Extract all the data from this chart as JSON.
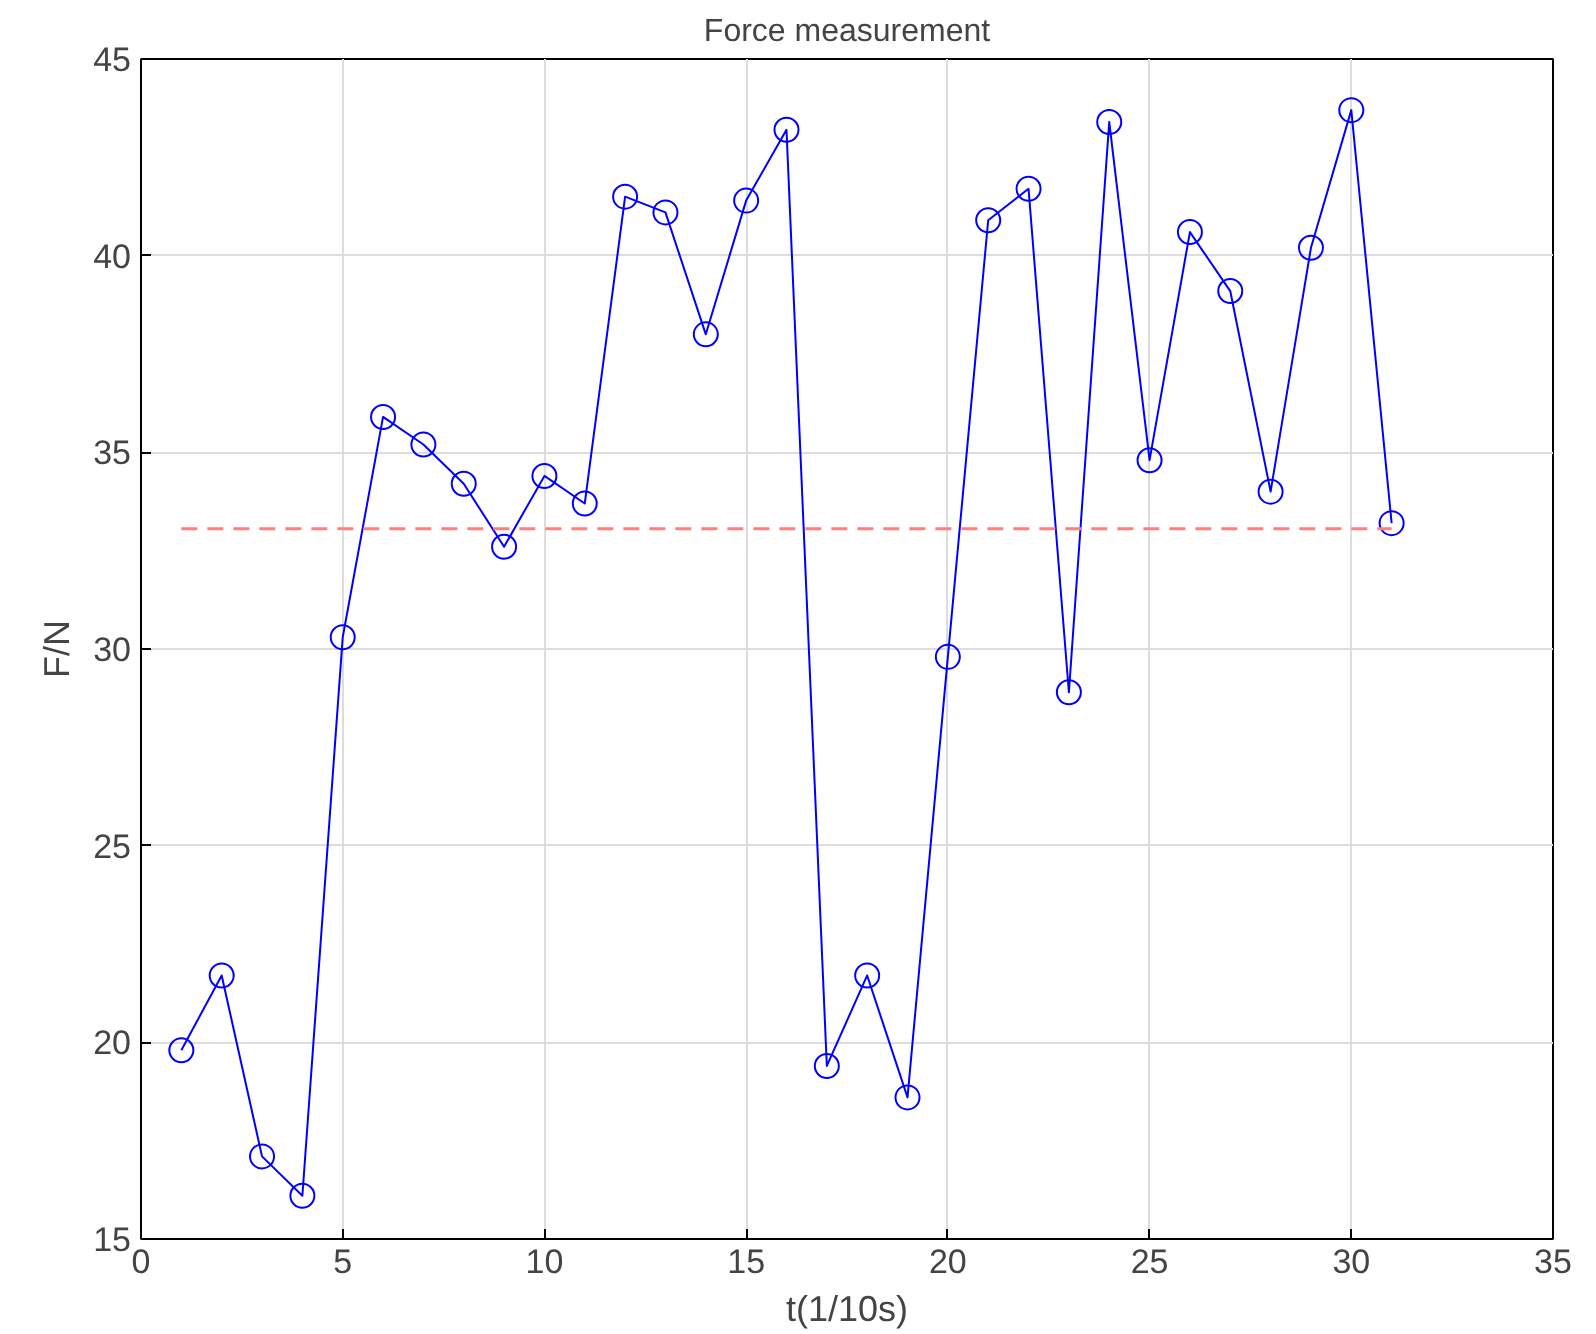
{
  "chart_data": {
    "type": "line",
    "title": "Force measurement",
    "xlabel": "t(1/10s)",
    "ylabel": "F/N",
    "x": [
      1,
      2,
      3,
      4,
      5,
      6,
      7,
      8,
      9,
      10,
      11,
      12,
      13,
      14,
      15,
      16,
      17,
      18,
      19,
      20,
      21,
      22,
      23,
      24,
      25,
      26,
      27,
      28,
      29,
      30,
      31
    ],
    "series": [
      {
        "color": "#0000ff",
        "values": [
          19.8,
          21.7,
          17.1,
          16.1,
          30.3,
          35.9,
          35.2,
          34.2,
          32.6,
          34.4,
          33.7,
          41.5,
          41.1,
          38.0,
          41.4,
          43.2,
          19.4,
          21.7,
          18.6,
          29.8,
          40.9,
          41.7,
          28.9,
          43.4,
          34.8,
          40.6,
          39.1,
          34.0,
          40.2,
          43.7,
          33.2
        ]
      }
    ],
    "marker": "circle",
    "line_style": "solid",
    "ref_lines": [
      {
        "axis": "y",
        "value": 33.06,
        "color": "#ff7f7f",
        "line_style": "dashed"
      }
    ],
    "xlim": [
      0,
      35
    ],
    "xticks": [
      0,
      5,
      10,
      15,
      20,
      25,
      30,
      35
    ],
    "ylim": [
      15,
      45
    ],
    "yticks": [
      15,
      20,
      25,
      30,
      35,
      40,
      45
    ],
    "grid": true
  }
}
